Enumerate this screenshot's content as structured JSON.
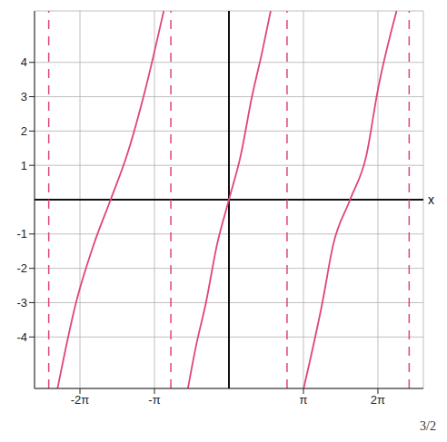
{
  "chart_data": {
    "type": "line",
    "x_label": "x",
    "annotation": "3/2",
    "xlim": [
      -8.2,
      8.2
    ],
    "ylim": [
      -5.5,
      5.5
    ],
    "xticks": [
      {
        "value": -6.283,
        "label": "-2π"
      },
      {
        "value": -3.142,
        "label": "-π"
      },
      {
        "value": 3.142,
        "label": "π"
      },
      {
        "value": 6.283,
        "label": "2π"
      }
    ],
    "yticks": [
      -4,
      -3,
      -2,
      -1,
      1,
      2,
      3,
      4
    ],
    "grid": true,
    "asymptotes": [
      -7.6,
      -2.45,
      2.45,
      7.6
    ],
    "series": [
      {
        "color": "#e0457b",
        "marker": "none",
        "line_style": "solid",
        "x": [
          -7.23,
          -6.45,
          -5.7,
          -4.99,
          -4.3,
          -3.53,
          -2.75
        ],
        "values": [
          -5.5,
          -3,
          -1.3,
          0,
          1.3,
          3.2,
          5.5
        ]
      },
      {
        "color": "#e0457b",
        "marker": "none",
        "line_style": "solid",
        "x": [
          -1.73,
          -1.4,
          -0.97,
          -0.5,
          0,
          0.5,
          0.97,
          1.4,
          1.76
        ],
        "values": [
          -5.5,
          -4.3,
          -3,
          -1.3,
          0,
          1.3,
          3,
          4.3,
          5.5
        ]
      },
      {
        "color": "#e0457b",
        "marker": "none",
        "line_style": "solid",
        "x": [
          3.15,
          3.94,
          4.4,
          5.11,
          5.8,
          6.28,
          7.07
        ],
        "values": [
          -5.5,
          -3,
          -1.3,
          0,
          1.3,
          3.2,
          5.5
        ]
      }
    ]
  }
}
